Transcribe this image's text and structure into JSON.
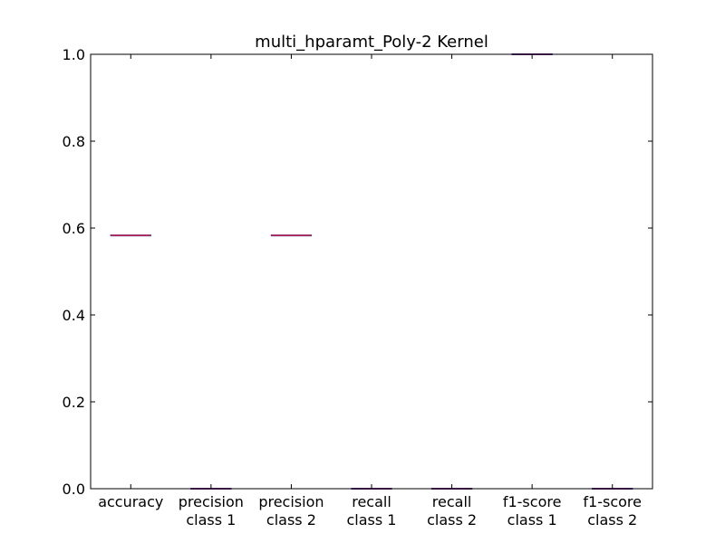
{
  "chart_data": {
    "type": "box",
    "title": "multi_hparamt_Poly-2 Kernel",
    "categories": [
      [
        "accuracy"
      ],
      [
        "precision",
        "class 1"
      ],
      [
        "precision",
        "class 2"
      ],
      [
        "recall",
        "class 1"
      ],
      [
        "recall",
        "class 2"
      ],
      [
        "f1-score",
        "class 1"
      ],
      [
        "f1-score",
        "class 2"
      ]
    ],
    "values": [
      0.583,
      0.0,
      0.583,
      0.0,
      0.0,
      1.0,
      0.0
    ],
    "ylim": [
      0,
      1.0
    ],
    "yticks": [
      "0.0",
      "0.2",
      "0.4",
      "0.6",
      "0.8",
      "1.0"
    ],
    "ytick_values": [
      0,
      0.2,
      0.4,
      0.6,
      0.8,
      1.0
    ],
    "xlabel": "",
    "ylabel": "",
    "grid": false,
    "colors": {
      "box": "#2040c0",
      "median": "#c02040"
    }
  }
}
